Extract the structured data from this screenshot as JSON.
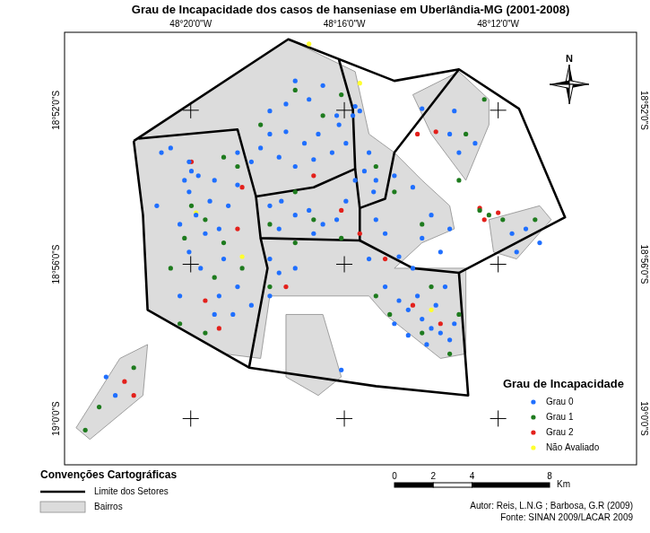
{
  "chart_data": {
    "type": "scatter",
    "title": "Grau de Incapacidade dos casos de hanseniase em Uberlândia-MG (2001-2008)",
    "xlim": [
      -48.388,
      -48.14
    ],
    "ylim": [
      -19.02,
      -18.833
    ],
    "xticks": [
      {
        "value": -48.3333,
        "label": "48°20'0\"W"
      },
      {
        "value": -48.2667,
        "label": "48°16'0\"W"
      },
      {
        "value": -48.2,
        "label": "48°12'0\"W"
      }
    ],
    "yticks": [
      {
        "value": -19.0,
        "label": "19°0'0\"S"
      },
      {
        "value": -18.9333,
        "label": "18°56'0\"S"
      },
      {
        "value": -18.8667,
        "label": "18°52'0\"S"
      }
    ],
    "grid": false,
    "legend": "lower right",
    "legend_title": "Grau de Incapacidade",
    "north_label": "N",
    "map_legend_title": "Convenções Cartográficas",
    "scale_bar": {
      "ticks": [
        0,
        2,
        4,
        8
      ],
      "unit": "Km"
    },
    "credits": [
      "Autor: Reis, L.N.G ; Barbosa, G.R (2009)",
      "Fonte: SINAN 2009/LACAR 2009"
    ],
    "regions": [
      {
        "name": "Limite dos Setores",
        "type": "line",
        "color": "#000000",
        "lines": [
          [
            [
              -48.358,
              -18.88
            ],
            [
              -48.291,
              -18.836
            ],
            [
              -48.245,
              -18.854
            ],
            [
              -48.217,
              -18.849
            ],
            [
              -48.191,
              -18.866
            ],
            [
              -48.171,
              -18.913
            ],
            [
              -48.217,
              -18.937
            ],
            [
              -48.213,
              -18.99
            ],
            [
              -48.253,
              -18.986
            ],
            [
              -48.308,
              -18.978
            ],
            [
              -48.352,
              -18.953
            ],
            [
              -48.354,
              -18.912
            ],
            [
              -48.358,
              -18.88
            ]
          ],
          [
            [
              -48.356,
              -18.879
            ],
            [
              -48.313,
              -18.875
            ],
            [
              -48.305,
              -18.904
            ],
            [
              -48.28,
              -18.9
            ],
            [
              -48.262,
              -18.892
            ],
            [
              -48.263,
              -18.866
            ],
            [
              -48.269,
              -18.845
            ]
          ],
          [
            [
              -48.305,
              -18.904
            ],
            [
              -48.303,
              -18.922
            ],
            [
              -48.26,
              -18.923
            ],
            [
              -48.26,
              -18.909
            ],
            [
              -48.262,
              -18.892
            ]
          ],
          [
            [
              -48.303,
              -18.922
            ],
            [
              -48.3,
              -18.935
            ],
            [
              -48.308,
              -18.978
            ]
          ],
          [
            [
              -48.26,
              -18.909
            ],
            [
              -48.249,
              -18.905
            ],
            [
              -48.245,
              -18.885
            ],
            [
              -48.217,
              -18.849
            ]
          ],
          [
            [
              -48.26,
              -18.923
            ],
            [
              -48.237,
              -18.935
            ],
            [
              -48.217,
              -18.937
            ]
          ]
        ]
      },
      {
        "name": "Bairros",
        "type": "polygon",
        "color": "#dcdcdc",
        "polygons": [
          [
            [
              -48.358,
              -18.88
            ],
            [
              -48.291,
              -18.836
            ],
            [
              -48.262,
              -18.85
            ],
            [
              -48.256,
              -18.877
            ],
            [
              -48.245,
              -18.885
            ],
            [
              -48.233,
              -18.897
            ],
            [
              -48.221,
              -18.908
            ],
            [
              -48.219,
              -18.918
            ],
            [
              -48.233,
              -18.924
            ],
            [
              -48.245,
              -18.935
            ],
            [
              -48.214,
              -18.935
            ],
            [
              -48.214,
              -18.972
            ],
            [
              -48.225,
              -18.974
            ],
            [
              -48.249,
              -18.955
            ],
            [
              -48.256,
              -18.947
            ],
            [
              -48.299,
              -18.947
            ],
            [
              -48.303,
              -18.974
            ],
            [
              -48.319,
              -18.972
            ],
            [
              -48.352,
              -18.953
            ],
            [
              -48.354,
              -18.912
            ]
          ],
          [
            [
              -48.237,
              -18.86
            ],
            [
              -48.217,
              -18.85
            ],
            [
              -48.204,
              -18.862
            ],
            [
              -48.204,
              -18.873
            ],
            [
              -48.214,
              -18.897
            ],
            [
              -48.229,
              -18.877
            ]
          ],
          [
            [
              -48.204,
              -18.914
            ],
            [
              -48.182,
              -18.908
            ],
            [
              -48.177,
              -18.914
            ],
            [
              -48.192,
              -18.931
            ],
            [
              -48.202,
              -18.928
            ]
          ],
          [
            [
              -48.292,
              -18.955
            ],
            [
              -48.276,
              -18.955
            ],
            [
              -48.268,
              -18.982
            ],
            [
              -48.278,
              -18.99
            ],
            [
              -48.292,
              -18.982
            ]
          ],
          [
            [
              -48.364,
              -18.974
            ],
            [
              -48.352,
              -18.968
            ],
            [
              -48.354,
              -18.99
            ],
            [
              -48.377,
              -19.009
            ],
            [
              -48.383,
              -19.004
            ]
          ]
        ]
      }
    ],
    "series": [
      {
        "name": "Grau 0",
        "color": "#1f6fff",
        "marker": "circle",
        "values": [
          [
            -48.262,
            -18.865
          ],
          [
            -48.263,
            -18.869
          ],
          [
            -48.26,
            -18.867
          ],
          [
            -48.269,
            -18.873
          ],
          [
            -48.278,
            -18.877
          ],
          [
            -48.284,
            -18.881
          ],
          [
            -48.292,
            -18.876
          ],
          [
            -48.299,
            -18.877
          ],
          [
            -48.303,
            -18.883
          ],
          [
            -48.295,
            -18.887
          ],
          [
            -48.288,
            -18.891
          ],
          [
            -48.28,
            -18.888
          ],
          [
            -48.272,
            -18.885
          ],
          [
            -48.266,
            -18.881
          ],
          [
            -48.299,
            -18.867
          ],
          [
            -48.292,
            -18.864
          ],
          [
            -48.282,
            -18.862
          ],
          [
            -48.276,
            -18.856
          ],
          [
            -48.288,
            -18.854
          ],
          [
            -48.27,
            -18.869
          ],
          [
            -48.307,
            -18.889
          ],
          [
            -48.313,
            -18.885
          ],
          [
            -48.262,
            -18.897
          ],
          [
            -48.258,
            -18.893
          ],
          [
            -48.334,
            -18.889
          ],
          [
            -48.333,
            -18.893
          ],
          [
            -48.336,
            -18.897
          ],
          [
            -48.33,
            -18.895
          ],
          [
            -48.334,
            -18.902
          ],
          [
            -48.331,
            -18.912
          ],
          [
            -48.338,
            -18.916
          ],
          [
            -48.327,
            -18.92
          ],
          [
            -48.321,
            -18.918
          ],
          [
            -48.317,
            -18.908
          ],
          [
            -48.313,
            -18.899
          ],
          [
            -48.323,
            -18.897
          ],
          [
            -48.325,
            -18.906
          ],
          [
            -48.334,
            -18.928
          ],
          [
            -48.329,
            -18.935
          ],
          [
            -48.319,
            -18.931
          ],
          [
            -48.313,
            -18.943
          ],
          [
            -48.321,
            -18.947
          ],
          [
            -48.338,
            -18.947
          ],
          [
            -48.299,
            -18.908
          ],
          [
            -48.294,
            -18.906
          ],
          [
            -48.288,
            -18.912
          ],
          [
            -48.282,
            -18.91
          ],
          [
            -48.276,
            -18.916
          ],
          [
            -48.27,
            -18.914
          ],
          [
            -48.295,
            -18.918
          ],
          [
            -48.28,
            -18.92
          ],
          [
            -48.266,
            -18.906
          ],
          [
            -48.256,
            -18.885
          ],
          [
            -48.253,
            -18.897
          ],
          [
            -48.254,
            -18.902
          ],
          [
            -48.245,
            -18.895
          ],
          [
            -48.237,
            -18.9
          ],
          [
            -48.229,
            -18.912
          ],
          [
            -48.221,
            -18.918
          ],
          [
            -48.249,
            -18.92
          ],
          [
            -48.233,
            -18.922
          ],
          [
            -48.225,
            -18.928
          ],
          [
            -48.243,
            -18.93
          ],
          [
            -48.256,
            -18.931
          ],
          [
            -48.253,
            -18.914
          ],
          [
            -48.249,
            -18.943
          ],
          [
            -48.243,
            -18.949
          ],
          [
            -48.239,
            -18.953
          ],
          [
            -48.233,
            -18.957
          ],
          [
            -48.229,
            -18.961
          ],
          [
            -48.225,
            -18.963
          ],
          [
            -48.221,
            -18.966
          ],
          [
            -48.235,
            -18.947
          ],
          [
            -48.227,
            -18.951
          ],
          [
            -48.245,
            -18.959
          ],
          [
            -48.239,
            -18.964
          ],
          [
            -48.231,
            -18.968
          ],
          [
            -48.219,
            -18.959
          ],
          [
            -48.223,
            -18.943
          ],
          [
            -48.237,
            -18.935
          ],
          [
            -48.299,
            -18.931
          ],
          [
            -48.295,
            -18.937
          ],
          [
            -48.288,
            -18.935
          ],
          [
            -48.299,
            -18.947
          ],
          [
            -48.307,
            -18.951
          ],
          [
            -48.315,
            -18.955
          ],
          [
            -48.323,
            -18.955
          ],
          [
            -48.268,
            -18.979
          ],
          [
            -48.233,
            -18.866
          ],
          [
            -48.221,
            -18.877
          ],
          [
            -48.217,
            -18.885
          ],
          [
            -48.21,
            -18.881
          ],
          [
            -48.219,
            -18.867
          ],
          [
            -48.194,
            -18.92
          ],
          [
            -48.188,
            -18.918
          ],
          [
            -48.182,
            -18.924
          ],
          [
            -48.192,
            -18.928
          ],
          [
            -48.37,
            -18.982
          ],
          [
            -48.366,
            -18.99
          ],
          [
            -48.346,
            -18.885
          ],
          [
            -48.342,
            -18.883
          ],
          [
            -48.348,
            -18.908
          ]
        ]
      },
      {
        "name": "Grau 1",
        "color": "#1e7b1e",
        "marker": "circle",
        "values": [
          [
            -48.288,
            -18.858
          ],
          [
            -48.268,
            -18.86
          ],
          [
            -48.276,
            -18.869
          ],
          [
            -48.303,
            -18.873
          ],
          [
            -48.319,
            -18.887
          ],
          [
            -48.313,
            -18.891
          ],
          [
            -48.333,
            -18.908
          ],
          [
            -48.327,
            -18.914
          ],
          [
            -48.336,
            -18.922
          ],
          [
            -48.342,
            -18.935
          ],
          [
            -48.319,
            -18.924
          ],
          [
            -48.323,
            -18.939
          ],
          [
            -48.288,
            -18.902
          ],
          [
            -48.299,
            -18.916
          ],
          [
            -48.28,
            -18.914
          ],
          [
            -48.268,
            -18.922
          ],
          [
            -48.253,
            -18.891
          ],
          [
            -48.245,
            -18.902
          ],
          [
            -48.233,
            -18.916
          ],
          [
            -48.217,
            -18.897
          ],
          [
            -48.214,
            -18.877
          ],
          [
            -48.206,
            -18.862
          ],
          [
            -48.229,
            -18.943
          ],
          [
            -48.233,
            -18.963
          ],
          [
            -48.221,
            -18.972
          ],
          [
            -48.217,
            -18.955
          ],
          [
            -48.253,
            -18.947
          ],
          [
            -48.247,
            -18.955
          ],
          [
            -48.299,
            -18.943
          ],
          [
            -48.311,
            -18.935
          ],
          [
            -48.327,
            -18.963
          ],
          [
            -48.373,
            -18.995
          ],
          [
            -48.358,
            -18.978
          ],
          [
            -48.379,
            -19.005
          ],
          [
            -48.198,
            -18.914
          ],
          [
            -48.184,
            -18.914
          ],
          [
            -48.208,
            -18.91
          ],
          [
            -48.204,
            -18.912
          ],
          [
            -48.338,
            -18.959
          ],
          [
            -48.288,
            -18.924
          ]
        ]
      },
      {
        "name": "Grau 2",
        "color": "#e3201b",
        "marker": "circle",
        "values": [
          [
            -48.235,
            -18.877
          ],
          [
            -48.227,
            -18.876
          ],
          [
            -48.2,
            -18.911
          ],
          [
            -48.206,
            -18.914
          ],
          [
            -48.208,
            -18.909
          ],
          [
            -48.362,
            -18.984
          ],
          [
            -48.358,
            -18.99
          ],
          [
            -48.327,
            -18.949
          ],
          [
            -48.321,
            -18.961
          ],
          [
            -48.313,
            -18.918
          ],
          [
            -48.292,
            -18.943
          ],
          [
            -48.249,
            -18.931
          ],
          [
            -48.237,
            -18.951
          ],
          [
            -48.225,
            -18.959
          ],
          [
            -48.26,
            -18.92
          ],
          [
            -48.268,
            -18.91
          ],
          [
            -48.333,
            -18.889
          ],
          [
            -48.28,
            -18.895
          ],
          [
            -48.311,
            -18.9
          ]
        ]
      },
      {
        "name": "Não Avaliado",
        "color": "#ffff2e",
        "marker": "circle",
        "values": [
          [
            -48.282,
            -18.838
          ],
          [
            -48.26,
            -18.855
          ],
          [
            -48.331,
            -18.911
          ],
          [
            -48.311,
            -18.93
          ],
          [
            -48.229,
            -18.953
          ]
        ]
      }
    ]
  }
}
